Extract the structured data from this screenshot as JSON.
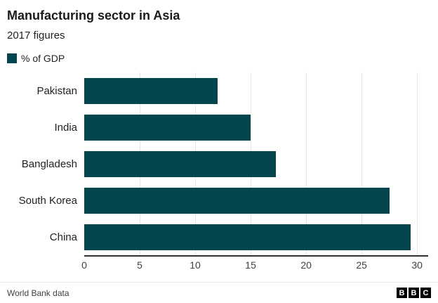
{
  "chart_data": {
    "type": "bar",
    "orientation": "horizontal",
    "title": "Manufacturing sector in Asia",
    "subtitle": "2017 figures",
    "legend": "% of GDP",
    "categories": [
      "Pakistan",
      "India",
      "Bangladesh",
      "South Korea",
      "China"
    ],
    "values": [
      12,
      15,
      17.3,
      27.5,
      29.4
    ],
    "xlabel": "",
    "ylabel": "",
    "xlim": [
      0,
      31
    ],
    "xticks": [
      0,
      5,
      10,
      15,
      20,
      25,
      30
    ],
    "grid": "vertical",
    "legend_position": "top-left",
    "source": "World Bank data",
    "colors": {
      "bar": "#05454e",
      "grid": "#e6e6e6",
      "axis": "#333333",
      "text": "#222222"
    }
  },
  "footer": {
    "logo_letters": [
      "B",
      "B",
      "C"
    ]
  }
}
